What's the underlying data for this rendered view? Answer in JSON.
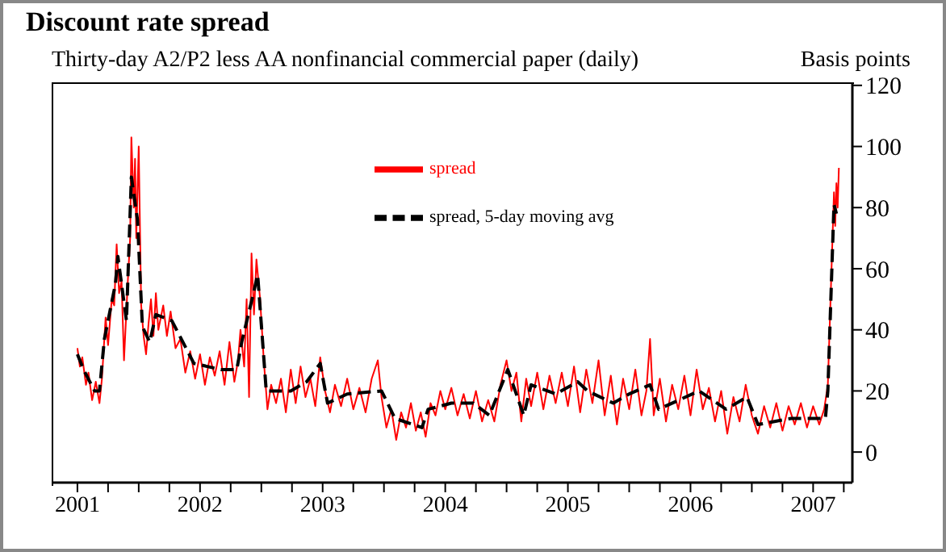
{
  "chart_data": {
    "type": "line",
    "title": "Discount rate spread",
    "subtitle": "Thirty-day A2/P2 less AA nonfinancial commercial paper (daily)",
    "ylabel": "Basis points",
    "xlim": [
      2000.79,
      2007.32
    ],
    "ylim": [
      -10,
      121
    ],
    "xticks": [
      2001,
      {
        "value": 2001.25,
        "label": null
      },
      {
        "value": 2001.5,
        "label": null
      },
      {
        "value": 2001.75,
        "label": null
      },
      2002,
      {
        "value": 2002.25,
        "label": null
      },
      {
        "value": 2002.5,
        "label": null
      },
      {
        "value": 2002.75,
        "label": null
      },
      2003,
      {
        "value": 2003.25,
        "label": null
      },
      {
        "value": 2003.5,
        "label": null
      },
      {
        "value": 2003.75,
        "label": null
      },
      2004,
      {
        "value": 2004.25,
        "label": null
      },
      {
        "value": 2004.5,
        "label": null
      },
      {
        "value": 2004.75,
        "label": null
      },
      2005,
      {
        "value": 2005.25,
        "label": null
      },
      {
        "value": 2005.5,
        "label": null
      },
      {
        "value": 2005.75,
        "label": null
      },
      2006,
      {
        "value": 2006.25,
        "label": null
      },
      {
        "value": 2006.5,
        "label": null
      },
      {
        "value": 2006.75,
        "label": null
      },
      2007,
      {
        "value": 2007.25,
        "label": null
      }
    ],
    "yticks": [
      0,
      20,
      40,
      60,
      80,
      100,
      120
    ],
    "legend": "top",
    "marker": "none",
    "series": [
      {
        "name": "spread",
        "color": "#ff0000",
        "line_style": "solid",
        "x": [
          2001.0,
          2001.02,
          2001.04,
          2001.07,
          2001.09,
          2001.12,
          2001.15,
          2001.18,
          2001.2,
          2001.23,
          2001.25,
          2001.28,
          2001.3,
          2001.32,
          2001.34,
          2001.36,
          2001.38,
          2001.41,
          2001.43,
          2001.44,
          2001.46,
          2001.47,
          2001.48,
          2001.5,
          2001.52,
          2001.54,
          2001.56,
          2001.58,
          2001.6,
          2001.62,
          2001.64,
          2001.66,
          2001.7,
          2001.73,
          2001.76,
          2001.8,
          2001.84,
          2001.88,
          2001.92,
          2001.96,
          2002.0,
          2002.04,
          2002.08,
          2002.12,
          2002.16,
          2002.2,
          2002.24,
          2002.28,
          2002.31,
          2002.33,
          2002.36,
          2002.38,
          2002.4,
          2002.42,
          2002.44,
          2002.46,
          2002.49,
          2002.52,
          2002.55,
          2002.58,
          2002.62,
          2002.66,
          2002.7,
          2002.74,
          2002.78,
          2002.82,
          2002.86,
          2002.9,
          2002.94,
          2002.98,
          2003.02,
          2003.06,
          2003.1,
          2003.15,
          2003.2,
          2003.25,
          2003.3,
          2003.35,
          2003.4,
          2003.45,
          2003.48,
          2003.52,
          2003.56,
          2003.6,
          2003.64,
          2003.68,
          2003.72,
          2003.76,
          2003.8,
          2003.84,
          2003.88,
          2003.92,
          2003.96,
          2004.0,
          2004.05,
          2004.1,
          2004.15,
          2004.2,
          2004.25,
          2004.3,
          2004.35,
          2004.4,
          2004.45,
          2004.5,
          2004.54,
          2004.58,
          2004.62,
          2004.66,
          2004.7,
          2004.75,
          2004.8,
          2004.85,
          2004.9,
          2004.95,
          2005.0,
          2005.05,
          2005.1,
          2005.15,
          2005.2,
          2005.25,
          2005.3,
          2005.35,
          2005.4,
          2005.45,
          2005.5,
          2005.55,
          2005.6,
          2005.64,
          2005.67,
          2005.7,
          2005.75,
          2005.8,
          2005.85,
          2005.9,
          2005.95,
          2006.0,
          2006.05,
          2006.1,
          2006.15,
          2006.2,
          2006.25,
          2006.3,
          2006.35,
          2006.4,
          2006.45,
          2006.5,
          2006.55,
          2006.6,
          2006.65,
          2006.7,
          2006.75,
          2006.8,
          2006.85,
          2006.9,
          2006.95,
          2007.0,
          2007.05,
          2007.09,
          2007.12,
          2007.15,
          2007.17,
          2007.18,
          2007.19,
          2007.2,
          2007.21
        ],
        "values": [
          34,
          28,
          31,
          22,
          26,
          17,
          23,
          16,
          24,
          44,
          35,
          50,
          48,
          68,
          52,
          56,
          30,
          55,
          70,
          103,
          80,
          96,
          70,
          100,
          48,
          38,
          32,
          42,
          50,
          38,
          52,
          40,
          48,
          38,
          46,
          34,
          37,
          26,
          33,
          24,
          32,
          22,
          31,
          25,
          33,
          22,
          36,
          23,
          30,
          40,
          28,
          50,
          18,
          65,
          45,
          63,
          50,
          30,
          14,
          22,
          16,
          24,
          13,
          27,
          16,
          28,
          18,
          24,
          15,
          31,
          20,
          13,
          22,
          15,
          24,
          14,
          21,
          13,
          24,
          30,
          18,
          8,
          14,
          4,
          13,
          8,
          16,
          7,
          13,
          5,
          16,
          12,
          20,
          14,
          21,
          12,
          19,
          11,
          20,
          10,
          17,
          10,
          22,
          30,
          20,
          26,
          10,
          24,
          15,
          26,
          14,
          25,
          16,
          26,
          15,
          28,
          13,
          27,
          16,
          30,
          12,
          25,
          9,
          24,
          14,
          27,
          12,
          20,
          37,
          12,
          24,
          10,
          22,
          14,
          25,
          12,
          27,
          14,
          21,
          10,
          20,
          6,
          18,
          10,
          22,
          12,
          6,
          15,
          8,
          16,
          7,
          15,
          9,
          16,
          8,
          15,
          9,
          14,
          22,
          60,
          85,
          74,
          88,
          80,
          93
        ]
      },
      {
        "name": "spread, 5-day moving avg",
        "color": "#000000",
        "line_style": "dashed",
        "x": [
          2001.0,
          2001.05,
          2001.14,
          2001.18,
          2001.22,
          2001.31,
          2001.33,
          2001.4,
          2001.44,
          2001.49,
          2001.53,
          2001.59,
          2001.64,
          2001.77,
          2001.95,
          2002.17,
          2002.3,
          2002.34,
          2002.43,
          2002.47,
          2002.54,
          2002.74,
          2002.87,
          2002.98,
          2003.04,
          2003.2,
          2003.48,
          2003.59,
          2003.81,
          2003.86,
          2004.05,
          2004.23,
          2004.36,
          2004.51,
          2004.64,
          2004.7,
          2004.9,
          2005.08,
          2005.16,
          2005.37,
          2005.5,
          2005.67,
          2005.74,
          2006.07,
          2006.29,
          2006.46,
          2006.55,
          2006.82,
          2007.1,
          2007.12,
          2007.17,
          2007.19
        ],
        "values": [
          32,
          27,
          20,
          20,
          37,
          55,
          64,
          43,
          90,
          76,
          41,
          36,
          45,
          43,
          29,
          27,
          27,
          36,
          51,
          58,
          20,
          20,
          23,
          29,
          16,
          19,
          20,
          11,
          8,
          14,
          16,
          16,
          12,
          27,
          12,
          22,
          19,
          23,
          20,
          16,
          19,
          22,
          14,
          20,
          14,
          18,
          9,
          11,
          11,
          20,
          81,
          78
        ]
      }
    ]
  }
}
